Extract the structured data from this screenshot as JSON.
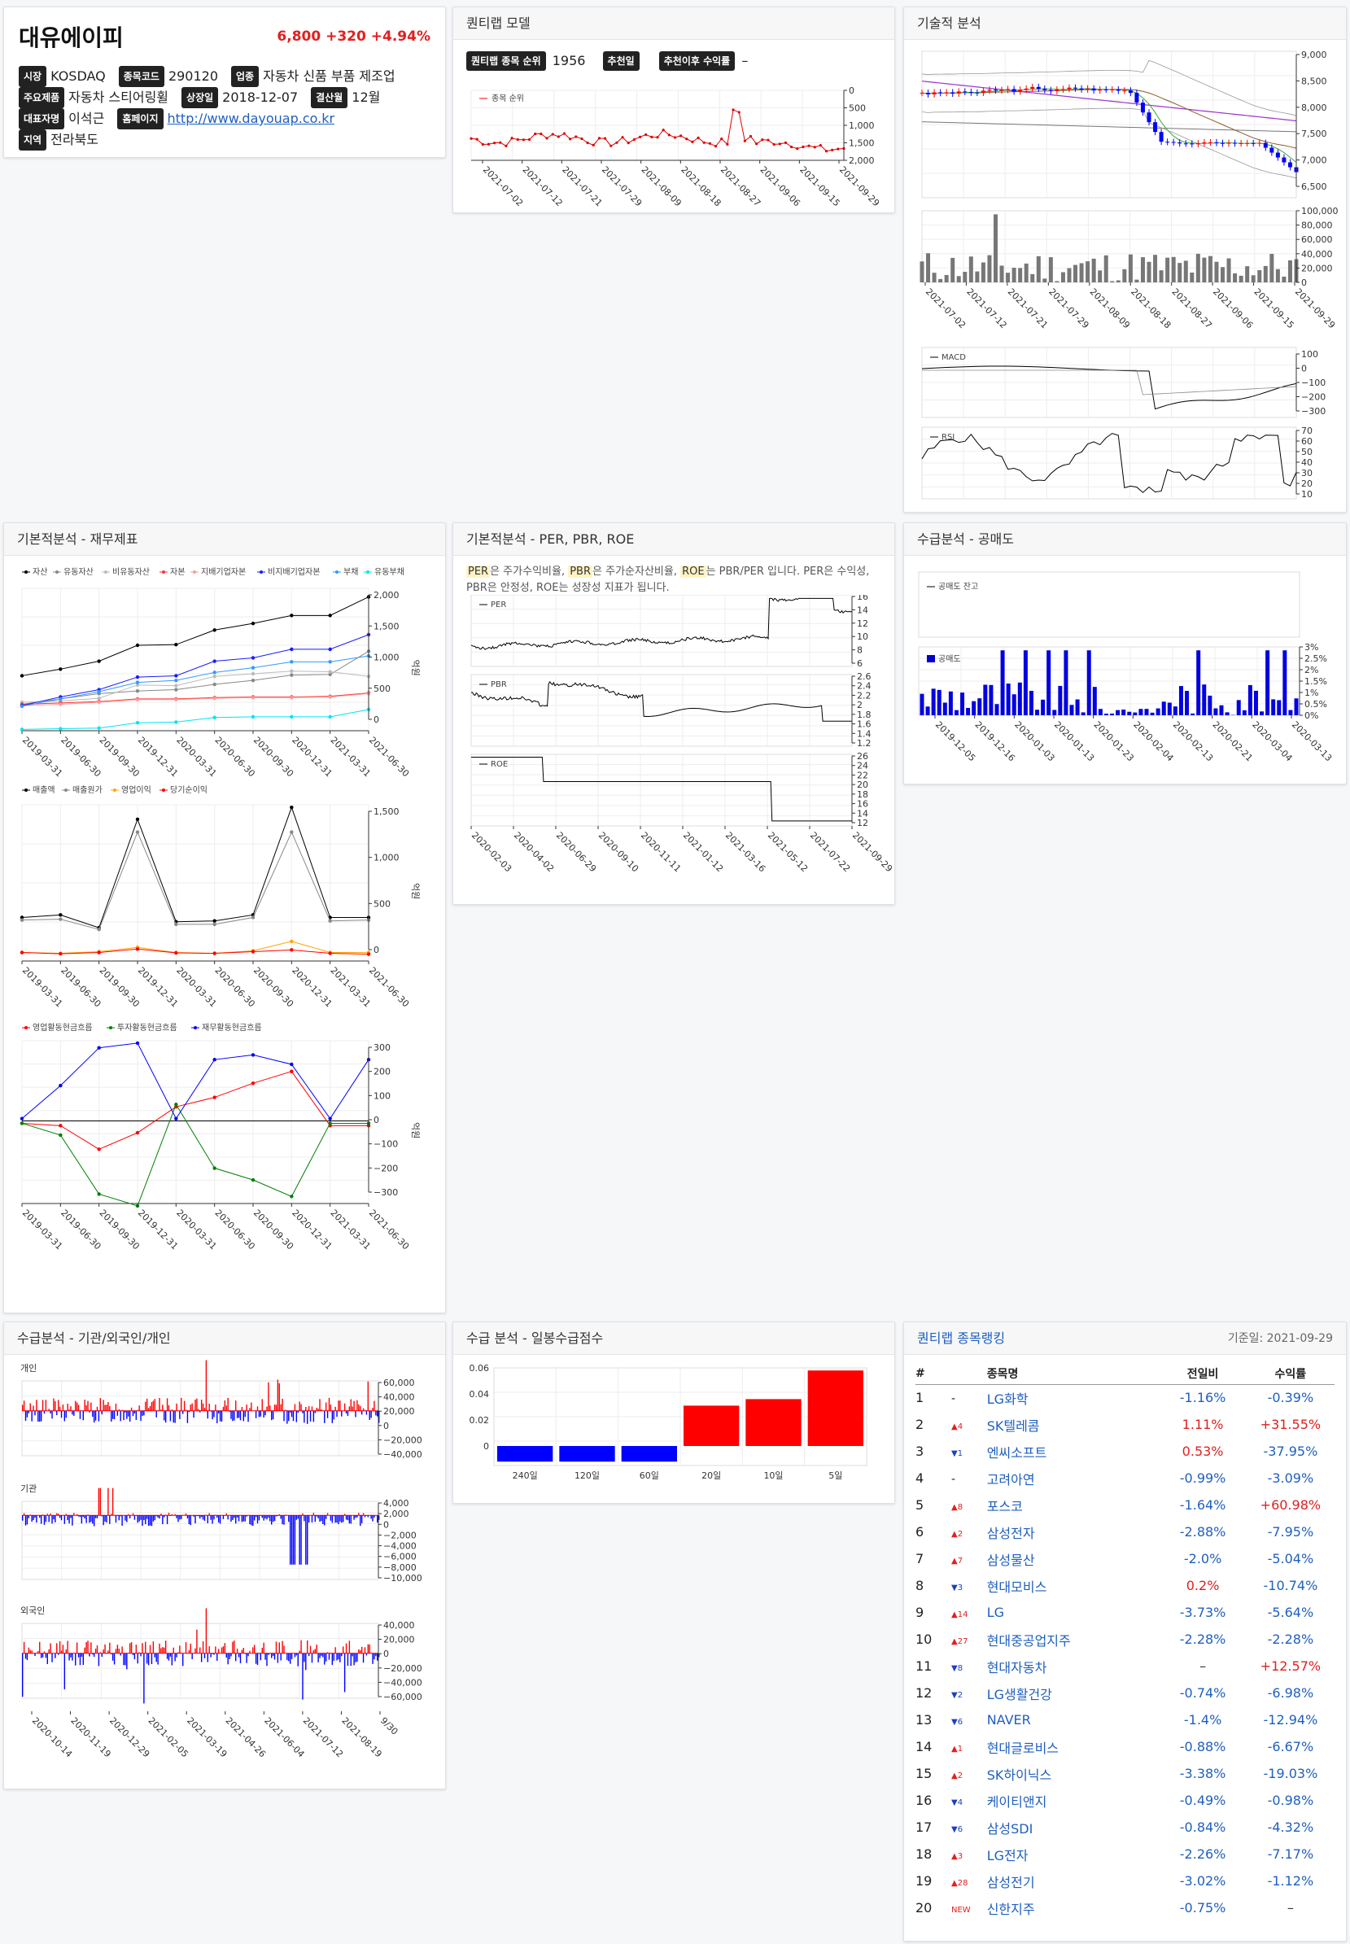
{
  "stock": {
    "name": "대유에이피",
    "price": "6,800",
    "change": "+320",
    "change_pct": "+4.94%",
    "info": [
      [
        {
          "label": "시장",
          "value": "KOSDAQ"
        },
        {
          "label": "종목코드",
          "value": "290120"
        },
        {
          "label": "업종",
          "value": "자동차 신품 부품 제조업"
        }
      ],
      [
        {
          "label": "주요제품",
          "value": "자동차 스티어링휠"
        },
        {
          "label": "상장일",
          "value": "2018-12-07"
        },
        {
          "label": "결산월",
          "value": "12월"
        }
      ],
      [
        {
          "label": "대표자명",
          "value": "이석근"
        },
        {
          "label": "홈페이지",
          "value": "http://www.dayouap.co.kr",
          "link": true
        }
      ],
      [
        {
          "label": "지역",
          "value": "전라북도"
        }
      ]
    ]
  },
  "quantilab": {
    "title": "퀀티랩 모델",
    "rank_label": "퀀티랩 종목 순위",
    "rank_value": "1956",
    "rec_date_label": "추천일",
    "rec_date_value": "",
    "rec_return_label": "추천이후 수익률",
    "rec_return_value": "–",
    "legend": "종목 순위",
    "yticks": [
      "0",
      "500",
      "1,000",
      "1,500",
      "2,000"
    ],
    "xticks": [
      "2021-07-02",
      "2021-07-12",
      "2021-07-21",
      "2021-07-29",
      "2021-08-09",
      "2021-08-18",
      "2021-08-27",
      "2021-09-06",
      "2021-09-15",
      "2021-09-29"
    ]
  },
  "technical": {
    "title": "기술적 분석",
    "price_yticks": [
      "9,000",
      "8,500",
      "8,000",
      "7,500",
      "7,000",
      "6,500"
    ],
    "vol_yticks": [
      "100,000",
      "80,000",
      "60,000",
      "40,000",
      "20,000",
      "0"
    ],
    "xticks": [
      "2021-07-02",
      "2021-07-12",
      "2021-07-21",
      "2021-07-29",
      "2021-08-09",
      "2021-08-18",
      "2021-08-27",
      "2021-09-06",
      "2021-09-15",
      "2021-09-29"
    ],
    "macd_label": "MACD",
    "macd_yticks": [
      "100",
      "0",
      "−100",
      "−200",
      "−300"
    ],
    "rsi_label": "RSI",
    "rsi_yticks": [
      "70",
      "60",
      "50",
      "40",
      "30",
      "20",
      "10"
    ],
    "colors": {
      "up": "#ff0000",
      "down": "#0000ff"
    }
  },
  "fundamental": {
    "title": "기본적분석 - 재무제표",
    "unit": "억원",
    "xticks": [
      "2019-03-31",
      "2019-06-30",
      "2019-09-30",
      "2019-12-31",
      "2020-03-31",
      "2020-06-30",
      "2020-09-30",
      "2020-12-31",
      "2021-03-31",
      "2021-06-30"
    ],
    "bs_legend": [
      {
        "name": "자산",
        "color": "#000000"
      },
      {
        "name": "유동자산",
        "color": "#888888"
      },
      {
        "name": "비유동자산",
        "color": "#bbbbbb"
      },
      {
        "name": "자본",
        "color": "#ff3333"
      },
      {
        "name": "지배기업자본",
        "color": "#ff9999"
      },
      {
        "name": "비지배기업자본",
        "color": "#1a1aff"
      },
      {
        "name": "부채",
        "color": "#3399ff"
      },
      {
        "name": "유동부채",
        "color": "#00e5ee"
      }
    ],
    "bs_yticks": [
      "2,000",
      "1,500",
      "1,000",
      "500",
      "0"
    ],
    "is_legend": [
      {
        "name": "매출액",
        "color": "#000000"
      },
      {
        "name": "매출원가",
        "color": "#888888"
      },
      {
        "name": "영업이익",
        "color": "#ffa500"
      },
      {
        "name": "당기순이익",
        "color": "#ff0000"
      }
    ],
    "is_yticks": [
      "1,500",
      "1,000",
      "500",
      "0"
    ],
    "cf_legend": [
      {
        "name": "영업활동현금흐름",
        "color": "#ff0000"
      },
      {
        "name": "투자활동현금흐름",
        "color": "#008000"
      },
      {
        "name": "재무활동현금흐름",
        "color": "#0000ff"
      }
    ],
    "cf_yticks": [
      "300",
      "200",
      "100",
      "0",
      "−100",
      "−200",
      "−300"
    ]
  },
  "valuation": {
    "title": "기본적분석 - PER, PBR, ROE",
    "desc_parts": [
      {
        "t": "PER",
        "hl": true
      },
      {
        "t": "은 주가수익비율, ",
        "hl": false
      },
      {
        "t": "PBR",
        "hl": true
      },
      {
        "t": "은 주가순자산비율, ",
        "hl": false
      },
      {
        "t": "ROE",
        "hl": true
      },
      {
        "t": "는 PBR/PER 입니다. PER은 수익성, PBR은 안정성, ROE는 성장성 지표가 됩니다.",
        "hl": false
      }
    ],
    "per_label": "PER",
    "per_yticks": [
      "16",
      "14",
      "12",
      "10",
      "8",
      "6"
    ],
    "pbr_label": "PBR",
    "pbr_yticks": [
      "2.6",
      "2.4",
      "2.2",
      "2",
      "1.8",
      "1.6",
      "1.4",
      "1.2"
    ],
    "roe_label": "ROE",
    "roe_yticks": [
      "26",
      "24",
      "22",
      "20",
      "18",
      "16",
      "14",
      "12"
    ],
    "xticks": [
      "2020-02-03",
      "2020-04-02",
      "2020-06-29",
      "2020-09-10",
      "2020-11-11",
      "2021-01-12",
      "2021-03-16",
      "2021-05-12",
      "2021-07-22",
      "2021-09-29"
    ]
  },
  "short": {
    "title": "수급분석 - 공매도",
    "balance_label": "공매도 잔고",
    "bar_label": "공매도",
    "yticks": [
      "3%",
      "2.5%",
      "2%",
      "1.5%",
      "1%",
      "0.5%",
      "0%"
    ],
    "xticks": [
      "2019-12-05",
      "2019-12-16",
      "2020-01-03",
      "2020-01-13",
      "2020-01-23",
      "2020-02-04",
      "2020-02-13",
      "2020-02-21",
      "2020-03-04",
      "2020-03-13"
    ]
  },
  "investors": {
    "title": "수급분석 - 기관/외국인/개인",
    "panels": [
      {
        "name": "개인",
        "yticks": [
          "60,000",
          "40,000",
          "20,000",
          "0",
          "−20,000",
          "−40,000"
        ]
      },
      {
        "name": "기관",
        "yticks": [
          "4,000",
          "2,000",
          "0",
          "−2,000",
          "−4,000",
          "−6,000",
          "−8,000",
          "−10,000"
        ]
      },
      {
        "name": "외국인",
        "yticks": [
          "40,000",
          "20,000",
          "0",
          "−20,000",
          "−40,000",
          "−60,000"
        ]
      }
    ],
    "xticks": [
      "2020-10-14",
      "2020-11-19",
      "2020-12-29",
      "2021-02-05",
      "2021-03-19",
      "2021-04-26",
      "2021-06-04",
      "2021-07-12",
      "2021-08-19",
      "9/30"
    ]
  },
  "score": {
    "title": "수급 분석 - 일봉수급점수",
    "yticks": [
      "0.06",
      "0.04",
      "0.02",
      "0"
    ],
    "chart_data": {
      "type": "bar",
      "categories": [
        "240일",
        "120일",
        "60일",
        "20일",
        "10일",
        "5일"
      ],
      "values": [
        -0.012,
        -0.012,
        -0.012,
        0.031,
        0.036,
        0.058
      ],
      "ylim": [
        -0.015,
        0.06
      ]
    }
  },
  "ranking": {
    "title": "퀀티랩 종목랭킹",
    "date_label": "기준일: 2021-09-29",
    "headers": [
      "#",
      "종목명",
      "전일비",
      "수익률"
    ],
    "rows": [
      {
        "rank": "1",
        "move": "-",
        "dir": "none",
        "name": "LG화학",
        "chg": "-1.16%",
        "ret": "-0.39%"
      },
      {
        "rank": "2",
        "move": "4",
        "dir": "up",
        "name": "SK텔레콤",
        "chg": "1.11%",
        "ret": "+31.55%"
      },
      {
        "rank": "3",
        "move": "1",
        "dir": "down",
        "name": "엔씨소프트",
        "chg": "0.53%",
        "ret": "-37.95%"
      },
      {
        "rank": "4",
        "move": "-",
        "dir": "none",
        "name": "고려아연",
        "chg": "-0.99%",
        "ret": "-3.09%"
      },
      {
        "rank": "5",
        "move": "8",
        "dir": "up",
        "name": "포스코",
        "chg": "-1.64%",
        "ret": "+60.98%"
      },
      {
        "rank": "6",
        "move": "2",
        "dir": "up",
        "name": "삼성전자",
        "chg": "-2.88%",
        "ret": "-7.95%"
      },
      {
        "rank": "7",
        "move": "7",
        "dir": "up",
        "name": "삼성물산",
        "chg": "-2.0%",
        "ret": "-5.04%"
      },
      {
        "rank": "8",
        "move": "3",
        "dir": "down",
        "name": "현대모비스",
        "chg": "0.2%",
        "ret": "-10.74%"
      },
      {
        "rank": "9",
        "move": "14",
        "dir": "up",
        "name": "LG",
        "chg": "-3.73%",
        "ret": "-5.64%"
      },
      {
        "rank": "10",
        "move": "27",
        "dir": "up",
        "name": "현대중공업지주",
        "chg": "-2.28%",
        "ret": "-2.28%"
      },
      {
        "rank": "11",
        "move": "8",
        "dir": "down",
        "name": "현대자동차",
        "chg": "–",
        "ret": "+12.57%"
      },
      {
        "rank": "12",
        "move": "2",
        "dir": "down",
        "name": "LG생활건강",
        "chg": "-0.74%",
        "ret": "-6.98%"
      },
      {
        "rank": "13",
        "move": "6",
        "dir": "down",
        "name": "NAVER",
        "chg": "-1.4%",
        "ret": "-12.94%"
      },
      {
        "rank": "14",
        "move": "1",
        "dir": "up",
        "name": "현대글로비스",
        "chg": "-0.88%",
        "ret": "-6.67%"
      },
      {
        "rank": "15",
        "move": "2",
        "dir": "up",
        "name": "SK하이닉스",
        "chg": "-3.38%",
        "ret": "-19.03%"
      },
      {
        "rank": "16",
        "move": "4",
        "dir": "down",
        "name": "케이티앤지",
        "chg": "-0.49%",
        "ret": "-0.98%"
      },
      {
        "rank": "17",
        "move": "6",
        "dir": "down",
        "name": "삼성SDI",
        "chg": "-0.84%",
        "ret": "-4.32%"
      },
      {
        "rank": "18",
        "move": "3",
        "dir": "up",
        "name": "LG전자",
        "chg": "-2.26%",
        "ret": "-7.17%"
      },
      {
        "rank": "19",
        "move": "28",
        "dir": "up",
        "name": "삼성전기",
        "chg": "-3.02%",
        "ret": "-1.12%"
      },
      {
        "rank": "20",
        "move": "NEW",
        "dir": "new",
        "name": "신한지주",
        "chg": "-0.75%",
        "ret": "–"
      }
    ]
  }
}
